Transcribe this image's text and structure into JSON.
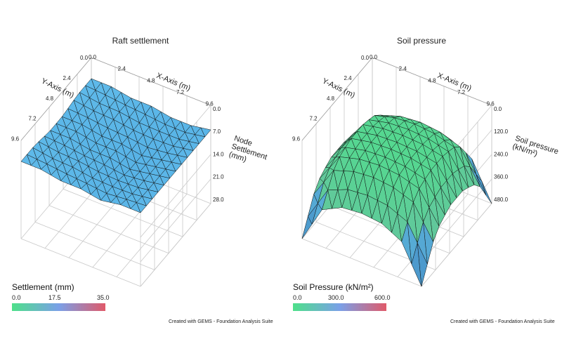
{
  "charts": [
    {
      "title": "Raft settlement",
      "x_axis_label": "X-Axis (m)",
      "y_axis_label": "Y-Axis (m)",
      "z_axis_label": [
        "Node",
        "Settlement",
        "(mm)"
      ],
      "x_ticks": [
        "0.0",
        "2.4",
        "4.8",
        "7.2",
        "9.6"
      ],
      "y_ticks": [
        "0.0",
        "2.4",
        "4.8",
        "7.2",
        "9.6"
      ],
      "z_ticks": [
        "0.0",
        "7.0",
        "14.0",
        "21.0",
        "28.0"
      ],
      "colorbar": {
        "title": "Settlement (mm)",
        "min_label": "0.0",
        "mid_label": "17.5",
        "max_label": "35.0",
        "colors": [
          "#4ee08a",
          "#7aa0e8",
          "#e05a6a"
        ]
      },
      "surface_color": "#5cbde8",
      "credit": "Created with GEMS - Foundation Analysis Suite"
    },
    {
      "title": "Soil pressure",
      "x_axis_label": "X-Axis (m)",
      "y_axis_label": "Y-Axis (m)",
      "z_axis_label": [
        "Soil pressure",
        "(kN/m²)"
      ],
      "x_ticks": [
        "0.0",
        "2.4",
        "4.8",
        "7.2",
        "9.6"
      ],
      "y_ticks": [
        "0.0",
        "2.4",
        "4.8",
        "7.2",
        "9.6"
      ],
      "z_ticks": [
        "0.0",
        "120.0",
        "240.0",
        "360.0",
        "480.0"
      ],
      "colorbar": {
        "title": "Soil Pressure (kN/m²)",
        "min_label": "0.0",
        "mid_label": "300.0",
        "max_label": "600.0",
        "colors": [
          "#4ee08a",
          "#7aa0e8",
          "#e05a6a"
        ]
      },
      "surface_color": "#4ee08a",
      "credit": "Created with GEMS - Foundation Analysis Suite"
    }
  ],
  "chart_data": [
    {
      "type": "surface",
      "title": "Raft settlement",
      "x_range": [
        0,
        9.6
      ],
      "y_range": [
        0,
        9.6
      ],
      "z_range": [
        0,
        28
      ],
      "z_reversed": true,
      "grid": true,
      "surface_summary": "nearly flat surface, approx 6–9 mm settlement across raft",
      "z_values_mm": [
        [
          6,
          6,
          7,
          7,
          8,
          8,
          7
        ],
        [
          6,
          7,
          7,
          8,
          8,
          8,
          7
        ],
        [
          7,
          7,
          8,
          8,
          9,
          8,
          7
        ],
        [
          7,
          7,
          8,
          8,
          9,
          8,
          7
        ],
        [
          6,
          7,
          7,
          8,
          8,
          8,
          7
        ],
        [
          6,
          6,
          7,
          7,
          8,
          7,
          7
        ]
      ]
    },
    {
      "type": "surface",
      "title": "Soil pressure",
      "x_range": [
        0,
        9.6
      ],
      "y_range": [
        0,
        9.6
      ],
      "z_range": [
        0,
        480
      ],
      "z_reversed": true,
      "grid": true,
      "surface_summary": "dome-shaped pressure, ~90–150 kN/m² interior, rising sharply near edges and up to ~480 kN/m² at corners",
      "z_values_kpa": [
        [
          480,
          300,
          250,
          240,
          250,
          300,
          480
        ],
        [
          300,
          150,
          120,
          110,
          120,
          150,
          300
        ],
        [
          250,
          120,
          100,
          95,
          100,
          120,
          250
        ],
        [
          250,
          120,
          100,
          95,
          100,
          120,
          250
        ],
        [
          300,
          150,
          120,
          110,
          120,
          150,
          300
        ],
        [
          480,
          300,
          250,
          240,
          250,
          300,
          480
        ]
      ]
    }
  ]
}
